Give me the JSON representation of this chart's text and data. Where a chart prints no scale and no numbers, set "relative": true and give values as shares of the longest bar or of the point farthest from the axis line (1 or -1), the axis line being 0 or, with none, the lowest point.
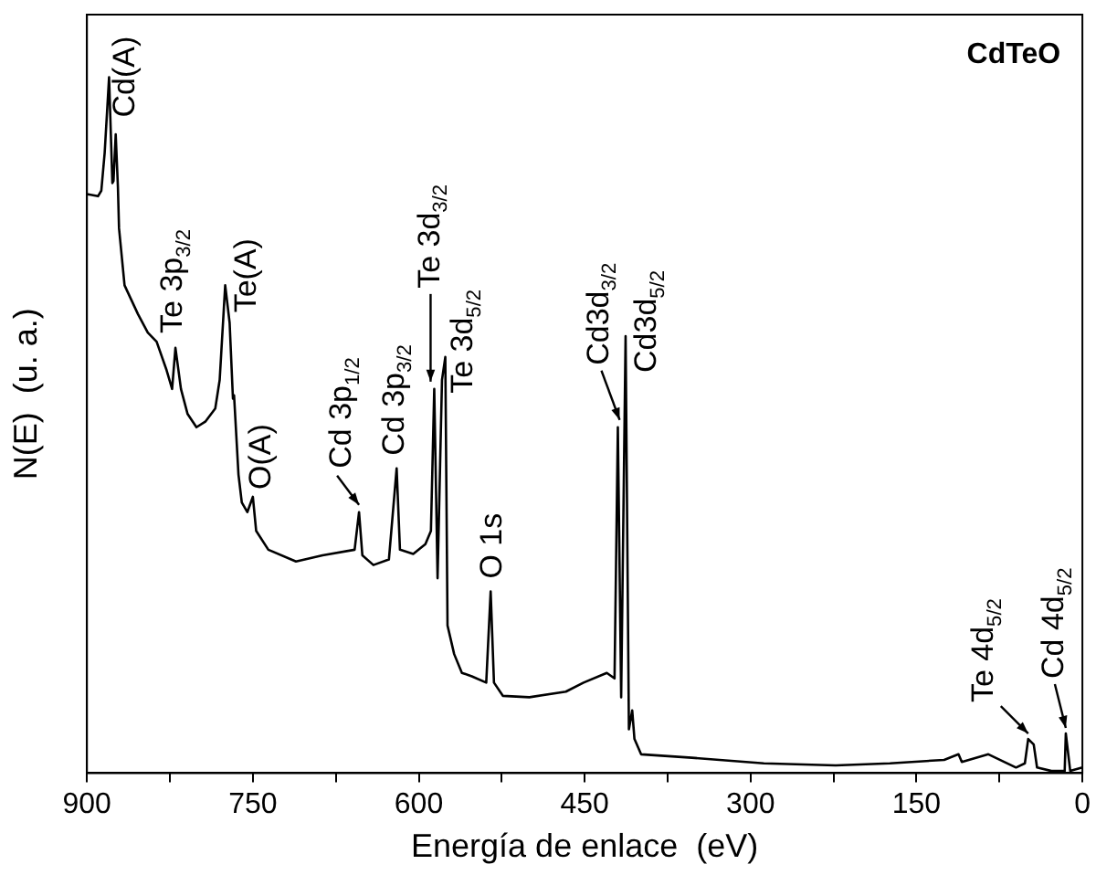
{
  "chart_data": {
    "type": "line",
    "relative": true,
    "xlabel": "Energía de enlace  (eV)",
    "ylabel": "N(E)  (u. a.)",
    "xlim": [
      900,
      0
    ],
    "xticks": [
      900,
      {
        "value": 825,
        "label": null
      },
      750,
      {
        "value": 675,
        "label": null
      },
      600,
      {
        "value": 525,
        "label": null
      },
      450,
      {
        "value": 375,
        "label": null
      },
      300,
      {
        "value": 225,
        "label": null
      },
      150,
      {
        "value": 75,
        "label": null
      },
      0
    ],
    "grid": false,
    "legend": false,
    "marker": "none",
    "line_style": "solid",
    "series": [
      {
        "color": "#000000",
        "x": [
          900,
          890,
          887,
          884,
          880,
          877,
          876,
          874,
          872,
          871,
          866,
          854,
          845,
          837,
          828,
          823,
          820,
          815,
          809,
          801,
          793,
          784,
          780,
          776,
          775,
          771,
          768,
          767,
          763,
          760,
          755,
          750,
          747,
          736,
          711,
          687,
          658,
          654,
          651,
          641,
          627,
          620,
          617,
          605,
          594,
          589,
          586,
          583,
          579,
          576,
          574,
          568,
          561,
          552,
          539,
          535,
          532,
          524,
          500,
          467,
          451,
          430,
          423,
          420,
          417,
          413,
          410,
          407,
          405,
          399,
          353,
          288,
          223,
          174,
          125,
          112,
          109,
          85,
          60,
          52,
          49,
          44,
          41,
          28,
          16,
          15,
          11,
          0
        ],
        "values": [
          0.832,
          0.829,
          0.837,
          0.891,
          1.0,
          0.848,
          0.851,
          0.918,
          0.842,
          0.783,
          0.701,
          0.66,
          0.633,
          0.62,
          0.579,
          0.552,
          0.611,
          0.552,
          0.516,
          0.497,
          0.505,
          0.524,
          0.565,
          0.674,
          0.701,
          0.647,
          0.538,
          0.543,
          0.429,
          0.389,
          0.375,
          0.397,
          0.348,
          0.321,
          0.304,
          0.313,
          0.321,
          0.375,
          0.313,
          0.299,
          0.307,
          0.438,
          0.321,
          0.315,
          0.329,
          0.348,
          0.552,
          0.28,
          0.565,
          0.598,
          0.212,
          0.171,
          0.144,
          0.139,
          0.13,
          0.261,
          0.13,
          0.111,
          0.109,
          0.117,
          0.13,
          0.144,
          0.136,
          0.497,
          0.109,
          0.628,
          0.063,
          0.09,
          0.049,
          0.027,
          0.022,
          0.014,
          0.011,
          0.014,
          0.019,
          0.027,
          0.016,
          0.027,
          0.008,
          0.014,
          0.049,
          0.041,
          0.008,
          0.003,
          0.003,
          0.057,
          0.003,
          0.008
        ]
      }
    ],
    "annotations": [
      {
        "text": "Cd(A)",
        "x": 880,
        "y": 1.0
      },
      {
        "text": "Te 3p$_{3/2}$",
        "x": 820,
        "y": 0.611
      },
      {
        "text": "Te(A)",
        "x": 775,
        "y": 0.701
      },
      {
        "text": "O(A)",
        "x": 750,
        "y": 0.397
      },
      {
        "text": "Cd 3p$_{1/2}$",
        "x": 654,
        "y": 0.375
      },
      {
        "text": "Cd 3p$_{3/2}$",
        "x": 620,
        "y": 0.438
      },
      {
        "text": "Te 3d$_{3/2}$",
        "x": 586,
        "y": 0.552
      },
      {
        "text": "Te 3d$_{5/2}$",
        "x": 576,
        "y": 0.598
      },
      {
        "text": "O 1s",
        "x": 535,
        "y": 0.261
      },
      {
        "text": "Cd3d$_{3/2}$",
        "x": 420,
        "y": 0.497
      },
      {
        "text": "Cd3d$_{5/2}$",
        "x": 413,
        "y": 0.628
      },
      {
        "text": "Te 4d$_{5/2}$",
        "x": 49,
        "y": 0.049
      },
      {
        "text": "Cd 4d$_{5/2}$",
        "x": 15,
        "y": 0.057
      },
      "CdTeO"
    ]
  }
}
